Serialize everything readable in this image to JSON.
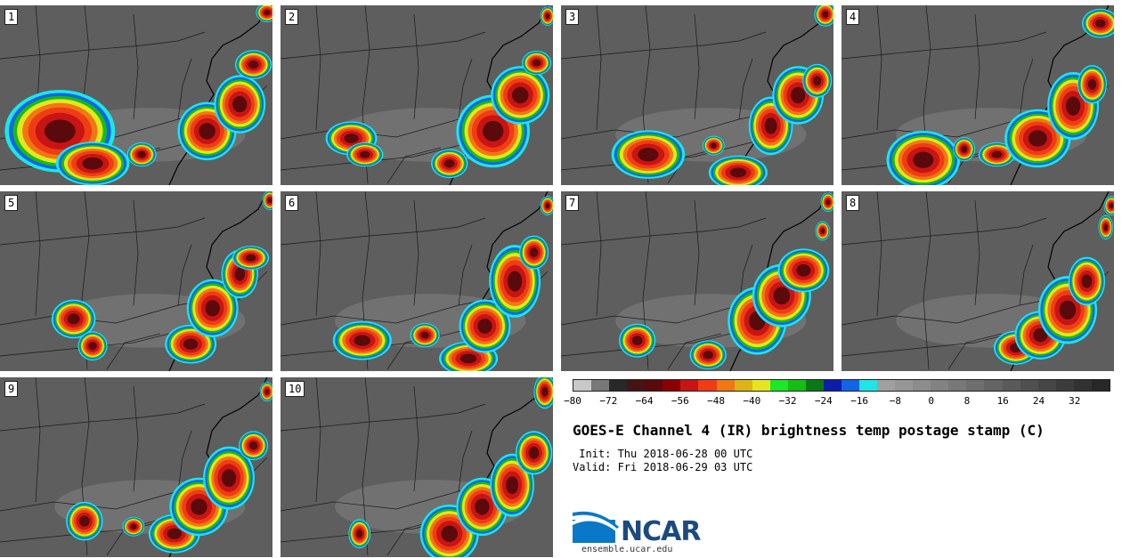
{
  "panels": [
    {
      "label": "1",
      "blobs": [
        [
          0.22,
          0.7,
          0.15,
          0.17
        ],
        [
          0.34,
          0.88,
          0.1,
          0.09
        ],
        [
          0.52,
          0.83,
          0.04,
          0.05
        ],
        [
          0.76,
          0.7,
          0.08,
          0.12
        ],
        [
          0.88,
          0.55,
          0.07,
          0.12
        ],
        [
          0.93,
          0.33,
          0.05,
          0.06
        ],
        [
          0.98,
          0.04,
          0.03,
          0.04
        ]
      ]
    },
    {
      "label": "2",
      "blobs": [
        [
          0.26,
          0.74,
          0.07,
          0.07
        ],
        [
          0.31,
          0.83,
          0.05,
          0.05
        ],
        [
          0.62,
          0.88,
          0.05,
          0.06
        ],
        [
          0.78,
          0.7,
          0.1,
          0.15
        ],
        [
          0.88,
          0.5,
          0.08,
          0.12
        ],
        [
          0.94,
          0.32,
          0.04,
          0.05
        ],
        [
          0.98,
          0.06,
          0.02,
          0.04
        ]
      ]
    },
    {
      "label": "3",
      "blobs": [
        [
          0.32,
          0.83,
          0.1,
          0.1
        ],
        [
          0.56,
          0.78,
          0.03,
          0.04
        ],
        [
          0.65,
          0.93,
          0.08,
          0.07
        ],
        [
          0.77,
          0.67,
          0.06,
          0.12
        ],
        [
          0.87,
          0.5,
          0.07,
          0.12
        ],
        [
          0.94,
          0.42,
          0.04,
          0.07
        ],
        [
          0.97,
          0.05,
          0.03,
          0.05
        ]
      ]
    },
    {
      "label": "4",
      "blobs": [
        [
          0.3,
          0.86,
          0.1,
          0.12
        ],
        [
          0.45,
          0.8,
          0.03,
          0.05
        ],
        [
          0.57,
          0.83,
          0.05,
          0.05
        ],
        [
          0.72,
          0.74,
          0.09,
          0.12
        ],
        [
          0.85,
          0.56,
          0.07,
          0.14
        ],
        [
          0.92,
          0.44,
          0.04,
          0.08
        ],
        [
          0.95,
          0.1,
          0.05,
          0.06
        ]
      ]
    },
    {
      "label": "5",
      "blobs": [
        [
          0.27,
          0.71,
          0.06,
          0.08
        ],
        [
          0.34,
          0.86,
          0.04,
          0.06
        ],
        [
          0.7,
          0.85,
          0.07,
          0.08
        ],
        [
          0.78,
          0.65,
          0.07,
          0.12
        ],
        [
          0.88,
          0.46,
          0.05,
          0.1
        ],
        [
          0.92,
          0.37,
          0.05,
          0.05
        ],
        [
          0.99,
          0.05,
          0.02,
          0.04
        ]
      ]
    },
    {
      "label": "6",
      "blobs": [
        [
          0.3,
          0.83,
          0.08,
          0.08
        ],
        [
          0.53,
          0.8,
          0.04,
          0.05
        ],
        [
          0.69,
          0.93,
          0.08,
          0.07
        ],
        [
          0.75,
          0.75,
          0.07,
          0.11
        ],
        [
          0.86,
          0.5,
          0.07,
          0.15
        ],
        [
          0.93,
          0.34,
          0.04,
          0.07
        ],
        [
          0.98,
          0.08,
          0.02,
          0.04
        ]
      ]
    },
    {
      "label": "7",
      "blobs": [
        [
          0.28,
          0.83,
          0.05,
          0.07
        ],
        [
          0.54,
          0.91,
          0.05,
          0.06
        ],
        [
          0.72,
          0.72,
          0.08,
          0.14
        ],
        [
          0.81,
          0.58,
          0.08,
          0.13
        ],
        [
          0.89,
          0.44,
          0.07,
          0.09
        ],
        [
          0.96,
          0.22,
          0.02,
          0.04
        ],
        [
          0.98,
          0.06,
          0.02,
          0.04
        ]
      ]
    },
    {
      "label": "8",
      "blobs": [
        [
          0.64,
          0.87,
          0.06,
          0.07
        ],
        [
          0.73,
          0.8,
          0.07,
          0.1
        ],
        [
          0.83,
          0.66,
          0.08,
          0.14
        ],
        [
          0.9,
          0.5,
          0.05,
          0.1
        ],
        [
          0.97,
          0.2,
          0.02,
          0.05
        ],
        [
          0.99,
          0.08,
          0.02,
          0.04
        ]
      ]
    },
    {
      "label": "9",
      "blobs": [
        [
          0.31,
          0.8,
          0.05,
          0.08
        ],
        [
          0.49,
          0.83,
          0.03,
          0.04
        ],
        [
          0.64,
          0.87,
          0.07,
          0.08
        ],
        [
          0.73,
          0.72,
          0.08,
          0.12
        ],
        [
          0.84,
          0.56,
          0.07,
          0.13
        ],
        [
          0.93,
          0.38,
          0.04,
          0.06
        ],
        [
          0.98,
          0.08,
          0.02,
          0.04
        ]
      ]
    },
    {
      "label": "10",
      "blobs": [
        [
          0.29,
          0.87,
          0.03,
          0.06
        ],
        [
          0.62,
          0.87,
          0.08,
          0.12
        ],
        [
          0.74,
          0.72,
          0.07,
          0.12
        ],
        [
          0.85,
          0.6,
          0.06,
          0.13
        ],
        [
          0.93,
          0.42,
          0.05,
          0.09
        ],
        [
          0.97,
          0.08,
          0.03,
          0.07
        ]
      ]
    }
  ],
  "colorbar": {
    "colors": [
      "#c8c8c8",
      "#787878",
      "#282828",
      "#461414",
      "#5a0a0a",
      "#8c0000",
      "#c81414",
      "#f03c14",
      "#f07814",
      "#dcb414",
      "#e6e61e",
      "#1ee628",
      "#14be14",
      "#0a7814",
      "#0a1eaa",
      "#1464e6",
      "#1ee6e6",
      "#a0a0a0",
      "#969696",
      "#8c8c8c",
      "#828282",
      "#787878",
      "#6e6e6e",
      "#646464",
      "#5a5a5a",
      "#505050",
      "#464646",
      "#3c3c3c",
      "#323232",
      "#282828"
    ],
    "ticks": [
      "−80",
      "−72",
      "−64",
      "−56",
      "−48",
      "−40",
      "−32",
      "−24",
      "−16",
      "−8",
      "0",
      "8",
      "16",
      "24",
      "32"
    ]
  },
  "title": "GOES-E Channel 4 (IR) brightness temp postage stamp (C)",
  "init_line": " Init: Thu 2018-06-28 00 UTC",
  "valid_line": "Valid: Fri 2018-06-29 03 UTC",
  "logo": {
    "text": "NCAR",
    "accent": "#0a78c8"
  },
  "url": "ensemble.ucar.edu"
}
